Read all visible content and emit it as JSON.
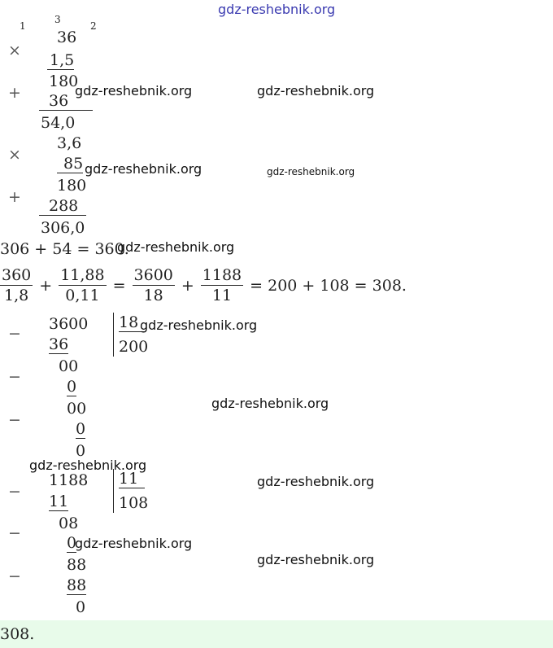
{
  "watermarks": [
    "gdz-reshebnik.org",
    "gdz-reshebnik.org",
    "gdz-reshebnik.org",
    "gdz-reshebnik.org",
    "gdz-reshebnik.org",
    "gdz-reshebnik.org",
    "gdz-reshebnik.org",
    "gdz-reshebnik.org",
    "gdz-reshebnik.org",
    "gdz-reshebnik.org",
    "gdz-reshebnik.org",
    "gdz-reshebnik.org"
  ],
  "carries": [
    "1",
    "3",
    "2"
  ],
  "mult_1": {
    "sign": "×",
    "top": "36",
    "bottom": "1,5",
    "partial_1": "180",
    "plus": "+",
    "partial_2": "36",
    "result": "54,0"
  },
  "mult_2": {
    "sign": "×",
    "top": "3,6",
    "bottom": "85",
    "partial_1": "180",
    "plus": "+",
    "partial_2": "288",
    "result": "306,0"
  },
  "sum_line": "306 + 54 = 360.",
  "equation": {
    "f1_num": "360",
    "f1_den": "1,8",
    "op1": "+",
    "f2_num": "11,88",
    "f2_den": "0,11",
    "eq1": "=",
    "f3_num": "3600",
    "f3_den": "18",
    "op2": "+",
    "f4_num": "1188",
    "f4_den": "11",
    "rest": "= 200 + 108 = 308."
  },
  "division_1": {
    "minus_signs": [
      "−",
      "−",
      "−"
    ],
    "dividend": "3600",
    "divisor": "18",
    "quotient": "200",
    "lines": [
      "36",
      "00",
      "0",
      "00",
      "0",
      "0"
    ]
  },
  "division_2": {
    "minus_signs": [
      "−",
      "−",
      "−"
    ],
    "dividend": "1188",
    "divisor": "11",
    "quotient": "108",
    "lines": [
      "11",
      "08",
      "0",
      "88",
      "88",
      "0"
    ]
  },
  "answer": "308."
}
